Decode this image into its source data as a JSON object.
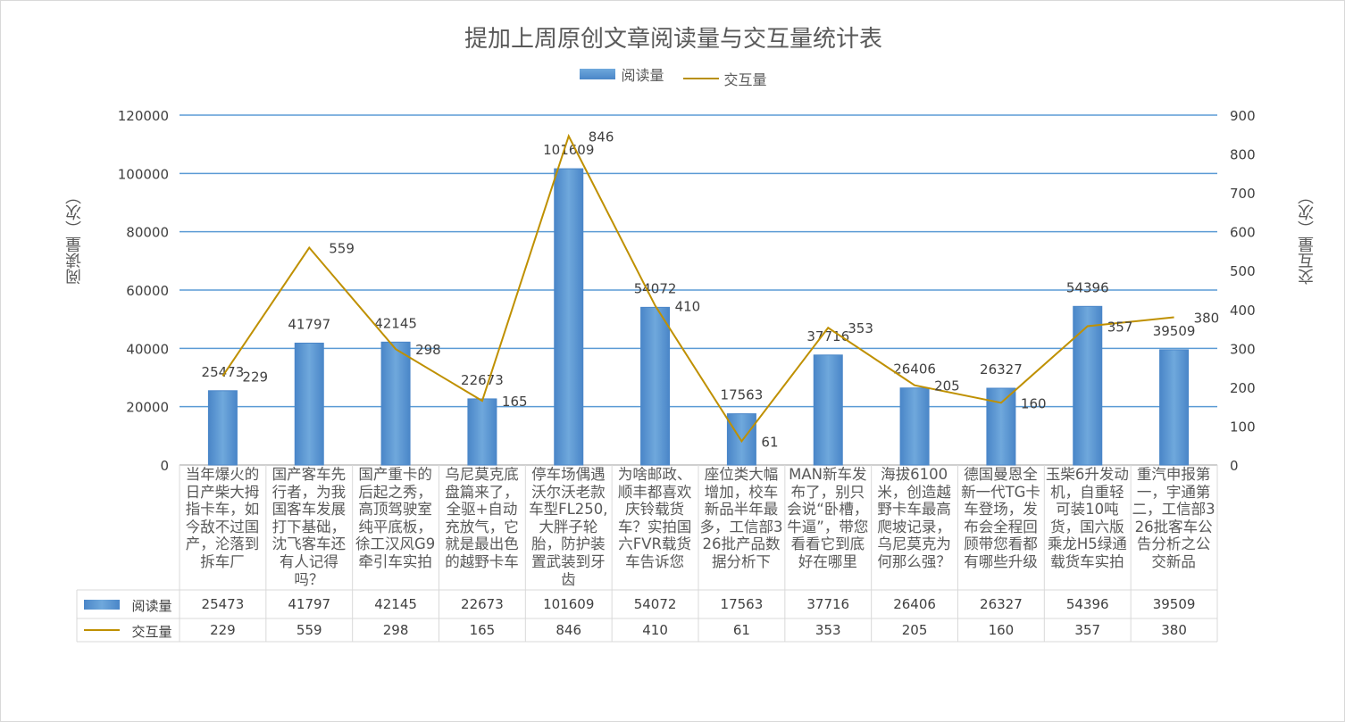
{
  "chart_data": {
    "type": "bar+line",
    "title": "提加上周原创文章阅读量与交互量统计表",
    "categories": [
      "当年爆火的日产柴大拇指卡车，如今敌不过国产，沦落到拆车厂",
      "国产客车先行者，为我国客车发展打下基础，沈飞客车还有人记得吗？",
      "国产重卡的后起之秀，高顶驾驶室纯平底板，徐工汉风G9牵引车实拍",
      "乌尼莫克底盘篇来了，全驱+自动充放气，它就是最出色的越野卡车",
      "停车场偶遇沃尔沃老款车型FL250,大胖子轮胎，防护装置武装到牙齿",
      "为啥邮政、顺丰都喜欢庆铃载货车？实拍国六FVR载货车告诉您",
      "座位类大幅增加，校车新品半年最多，工信部326批产品数据分析下",
      "MAN新车发布了，别只会说“卧槽，牛逼”，带您看看它到底好在哪里",
      "海拔6100米，创造越野卡车最高爬坡记录，乌尼莫克为何那么强？",
      "德国曼恩全新一代TG卡车登场，发布会全程回顾带您看都有哪些升级",
      "玉柴6升发动机，自重轻可装10吨货，国六版乘龙H5绿通载货车实拍",
      "重汽申报第一，宇通第二，工信部326批客车公告分析之公交新品"
    ],
    "series": [
      {
        "name": "阅读量",
        "type": "bar",
        "axis": "left",
        "color": "#5b9bd5",
        "values": [
          25473,
          41797,
          42145,
          22673,
          101609,
          54072,
          17563,
          37716,
          26406,
          26327,
          54396,
          39509
        ]
      },
      {
        "name": "交互量",
        "type": "line",
        "axis": "right",
        "color": "#bf9000",
        "values": [
          229,
          559,
          298,
          165,
          846,
          410,
          61,
          353,
          205,
          160,
          357,
          380
        ]
      }
    ],
    "ylabel_left": "阅读量（次）",
    "ylabel_right": "交互量（次）",
    "ylim_left": [
      0,
      120000
    ],
    "yticks_left": [
      0,
      20000,
      40000,
      60000,
      80000,
      100000,
      120000
    ],
    "ylim_right": [
      0,
      900
    ],
    "yticks_right": [
      0,
      100,
      200,
      300,
      400,
      500,
      600,
      700,
      800,
      900
    ],
    "grid": true,
    "legend": "top",
    "data_table": true
  }
}
